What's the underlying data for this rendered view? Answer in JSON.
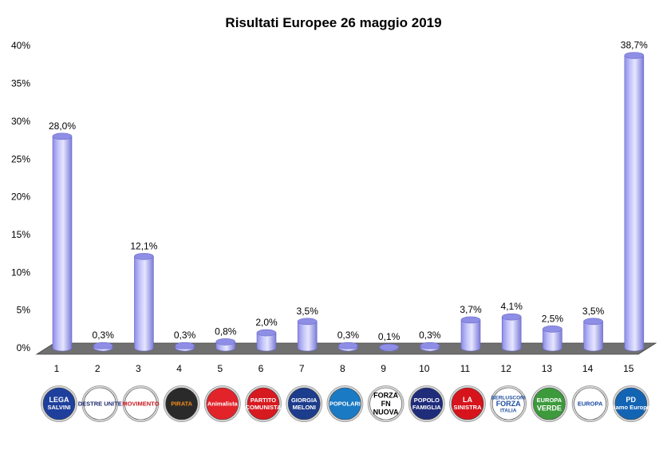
{
  "chart_data": {
    "type": "bar",
    "title": "Risultati Europee 26 maggio 2019",
    "xlabel": "",
    "ylabel": "",
    "categories": [
      "1",
      "2",
      "3",
      "4",
      "5",
      "6",
      "7",
      "8",
      "9",
      "10",
      "11",
      "12",
      "13",
      "14",
      "15"
    ],
    "values": [
      28.0,
      0.3,
      12.1,
      0.3,
      0.8,
      2.0,
      3.5,
      0.3,
      0.1,
      0.3,
      3.7,
      4.1,
      2.5,
      3.5,
      38.7
    ],
    "value_labels": [
      "28,0%",
      "0,3%",
      "12,1%",
      "0,3%",
      "0,8%",
      "2,0%",
      "3,5%",
      "0,3%",
      "0,1%",
      "0,3%",
      "3,7%",
      "4,1%",
      "2,5%",
      "3,5%",
      "38,7%"
    ],
    "ylim": [
      0,
      40
    ],
    "yticks": [
      0,
      5,
      10,
      15,
      20,
      25,
      30,
      35,
      40
    ],
    "ytick_labels": [
      "0%",
      "5%",
      "10%",
      "15%",
      "20%",
      "25%",
      "30%",
      "35%",
      "40%"
    ],
    "grid": false,
    "legend": "none",
    "bar_style": "3d-cylinder",
    "bar_color": "#b0b0f4",
    "floor_color": "#707070"
  },
  "party_logos": [
    {
      "slot": 1,
      "text": [
        "LEGA",
        "SALVINI"
      ],
      "bg": "#1e3f9c",
      "fg": "#ffffff"
    },
    {
      "slot": 2,
      "text": [
        "DESTRE UNITE"
      ],
      "bg": "#ffffff",
      "fg": "#1e2a6e"
    },
    {
      "slot": 3,
      "text": [
        "MOVIMENTO"
      ],
      "bg": "#ffffff",
      "fg": "#c8161d"
    },
    {
      "slot": 4,
      "text": [
        "PIRATA"
      ],
      "bg": "#2a2a2a",
      "fg": "#f28c1e"
    },
    {
      "slot": 5,
      "text": [
        "Animalista"
      ],
      "bg": "#e2232a",
      "fg": "#ffffff"
    },
    {
      "slot": 6,
      "text": [
        "PARTITO",
        "COMUNISTA"
      ],
      "bg": "#d71920",
      "fg": "#ffffff"
    },
    {
      "slot": 7,
      "text": [
        "GIORGIA",
        "MELONI"
      ],
      "bg": "#1c3c8c",
      "fg": "#ffffff"
    },
    {
      "slot": 8,
      "text": [
        "POPOLARI"
      ],
      "bg": "#1a7ac4",
      "fg": "#ffffff"
    },
    {
      "slot": 9,
      "text": [
        "FORZA",
        "FN",
        "NUOVA"
      ],
      "bg": "#ffffff",
      "fg": "#000000"
    },
    {
      "slot": 10,
      "text": [
        "POPOLO",
        "FAMIGLIA"
      ],
      "bg": "#1f2c7a",
      "fg": "#ffffff"
    },
    {
      "slot": 11,
      "text": [
        "LA",
        "SINISTRA"
      ],
      "bg": "#d7141c",
      "fg": "#ffffff"
    },
    {
      "slot": 12,
      "text": [
        "BERLUSCONI",
        "FORZA",
        "ITALIA"
      ],
      "bg": "#ffffff",
      "fg": "#1d4d9e"
    },
    {
      "slot": 13,
      "text": [
        "EUROPA",
        "VERDE"
      ],
      "bg": "#3d9a3c",
      "fg": "#ffffff"
    },
    {
      "slot": 14,
      "text": [
        "EUROPA"
      ],
      "bg": "#ffffff",
      "fg": "#1a4aa0"
    },
    {
      "slot": 15,
      "text": [
        "PD",
        "Siamo Europei"
      ],
      "bg": "#1464b4",
      "fg": "#ffffff"
    }
  ]
}
